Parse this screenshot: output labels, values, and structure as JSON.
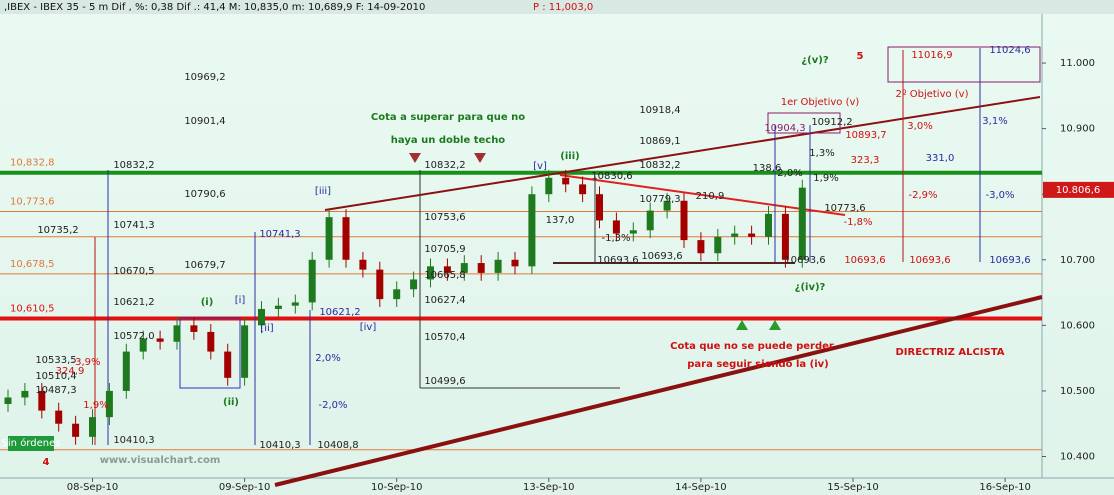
{
  "chart_data": {
    "type": "candlestick",
    "title": ",IBEX - IBEX 35 -  5 m Dif , %: 0,38 Dif .: 41,4 M: 10,835,0 m: 10,689,9 F: 14-09-2010",
    "title_price": "P : 11,003,0",
    "categories": [
      null,
      null,
      null,
      null,
      null,
      "08-Sep-10",
      null,
      null,
      null,
      null,
      null,
      null,
      null,
      null,
      "09-Sep-10",
      null,
      null,
      null,
      null,
      null,
      null,
      null,
      null,
      "10-Sep-10",
      null,
      null,
      null,
      null,
      null,
      null,
      null,
      null,
      "13-Sep-10",
      null,
      null,
      null,
      null,
      null,
      null,
      null,
      null,
      "14-Sep-10",
      null,
      null,
      null,
      null,
      null,
      null,
      null,
      null,
      "15-Sep-10",
      null,
      null,
      null,
      null,
      null,
      null,
      null,
      null,
      "16-Sep-10"
    ],
    "open": [
      10480,
      10490,
      10500,
      10470,
      10450,
      10430,
      10460,
      10500,
      10560,
      10580,
      10575,
      10600,
      10590,
      10560,
      10520,
      10600,
      10625,
      10630,
      10635,
      10700,
      10765,
      10700,
      10685,
      10640,
      10655,
      10670,
      10690,
      10680,
      10695,
      10680,
      10700,
      10690,
      10800,
      10825,
      10815,
      10800,
      10760,
      10740,
      10745,
      10775,
      10790,
      10730,
      10710,
      10735,
      10740,
      10735,
      10770,
      10700,
      null,
      null,
      null,
      null,
      null,
      null,
      null,
      null,
      null,
      null,
      null,
      null
    ],
    "high": [
      10502,
      10512,
      10512,
      10482,
      10462,
      10472,
      10512,
      10572,
      10592,
      10592,
      10612,
      10612,
      10602,
      10572,
      10612,
      10637,
      10642,
      10647,
      10712,
      10777,
      10777,
      10712,
      10697,
      10667,
      10682,
      10702,
      10702,
      10707,
      10707,
      10712,
      10712,
      10812,
      10837,
      10837,
      10827,
      10812,
      10772,
      10757,
      10787,
      10802,
      10802,
      10742,
      10747,
      10752,
      10752,
      10782,
      10782,
      10822,
      null,
      null,
      null,
      null,
      null,
      null,
      null,
      null,
      null,
      null,
      null,
      null
    ],
    "low": [
      10468,
      10478,
      10458,
      10438,
      10418,
      10418,
      10448,
      10488,
      10548,
      10563,
      10563,
      10578,
      10548,
      10508,
      10508,
      10588,
      10613,
      10618,
      10623,
      10688,
      10688,
      10673,
      10628,
      10628,
      10643,
      10658,
      10668,
      10668,
      10668,
      10668,
      10678,
      10678,
      10788,
      10803,
      10788,
      10748,
      10728,
      10728,
      10733,
      10763,
      10718,
      10698,
      10698,
      10723,
      10723,
      10723,
      10688,
      10688,
      null,
      null,
      null,
      null,
      null,
      null,
      null,
      null,
      null,
      null,
      null,
      null
    ],
    "close": [
      10490,
      10500,
      10470,
      10450,
      10430,
      10460,
      10500,
      10560,
      10580,
      10575,
      10600,
      10590,
      10560,
      10520,
      10600,
      10625,
      10630,
      10635,
      10700,
      10765,
      10700,
      10685,
      10640,
      10655,
      10670,
      10690,
      10680,
      10695,
      10680,
      10700,
      10690,
      10800,
      10825,
      10815,
      10800,
      10760,
      10740,
      10745,
      10775,
      10790,
      10730,
      10710,
      10735,
      10740,
      10735,
      10770,
      10700,
      10810,
      null,
      null,
      null,
      null,
      null,
      null,
      null,
      null,
      null,
      null,
      null,
      null
    ],
    "up_color": "#1f7a1f",
    "down_color": "#a30000",
    "ylim": [
      10371.8,
      11080.9
    ],
    "yticks": [
      {
        "value": 11000,
        "label": "11.000"
      },
      {
        "value": 10900,
        "label": "10.900"
      },
      {
        "value": 10800,
        "label": "10.800"
      },
      {
        "value": 10700,
        "label": "10.700"
      },
      {
        "value": 10600,
        "label": "10.600"
      },
      {
        "value": 10500,
        "label": "10.500"
      },
      {
        "value": 10400,
        "label": "10.400"
      }
    ],
    "last_price": {
      "value": 10806.6,
      "label": "10.806,6"
    },
    "levels": [
      {
        "value": 10832.8,
        "color": "#1a8f1a",
        "width": 4,
        "label": "10,832,8"
      },
      {
        "value": 10773.6,
        "color": "#e07a3a",
        "width": 1,
        "label": "10,773,6"
      },
      {
        "value": 10735.2,
        "color": "#e07a3a",
        "width": 1
      },
      {
        "value": 10678.5,
        "color": "#e07a3a",
        "width": 1,
        "label": "10,678,5"
      },
      {
        "value": 10610.5,
        "color": "#e01010",
        "width": 4,
        "label": "10,610,5"
      },
      {
        "value": 10410.3,
        "color": "#e07a3a",
        "width": 1
      }
    ],
    "annotations": [
      "Cota a superar para que no",
      "haya un doble techo",
      "Cota que no se puede perder",
      "para seguir siendo la (iv)",
      "DIRECTRIZ ALCISTA",
      "(iii)",
      "¿(v)?",
      "¿(iv)?",
      "(i)",
      "(ii)",
      "5",
      "4",
      "[v]",
      "[iii]",
      "[iv]",
      "[ii]",
      "[i]",
      "1er Objetivo (v)",
      "2º Objetivo (v)",
      "11016,9",
      "11024,6",
      "10969,2",
      "10901,4",
      "10790,6",
      "10679,7",
      "10918,4",
      "10869,1",
      "10832,2",
      "10832,2",
      "10832,2",
      "10741,3",
      "10735,2",
      "10670,5",
      "10621,2",
      "10572,0",
      "10753,6",
      "10705,9",
      "10665,8",
      "10627,4",
      "10570,4",
      "10499,6",
      "10410,3",
      "10410,3",
      "10408,8",
      "10741,3",
      "10621,2",
      "2,0%",
      "-2,0%",
      "10693,6",
      "10693,6",
      "10693,6",
      "10693,6",
      "10693,6",
      "10693,6",
      "10904,3",
      "10912,2",
      "10893,7",
      "3,0%",
      "3,1%",
      "323,3",
      "331,0",
      "-2,9%",
      "-3,0%",
      "1,3%",
      "2,0%",
      "1,9%",
      "10773,6",
      "-1,8%",
      "138,6",
      "210,9",
      "137,0",
      "-1,3%",
      "10830,6",
      "10779,3",
      "10533,5",
      "10510,4",
      "10487,3",
      "324,9",
      "-3,9%",
      "1,9%",
      "Sin órdenes",
      "www.visualchart.com"
    ]
  }
}
